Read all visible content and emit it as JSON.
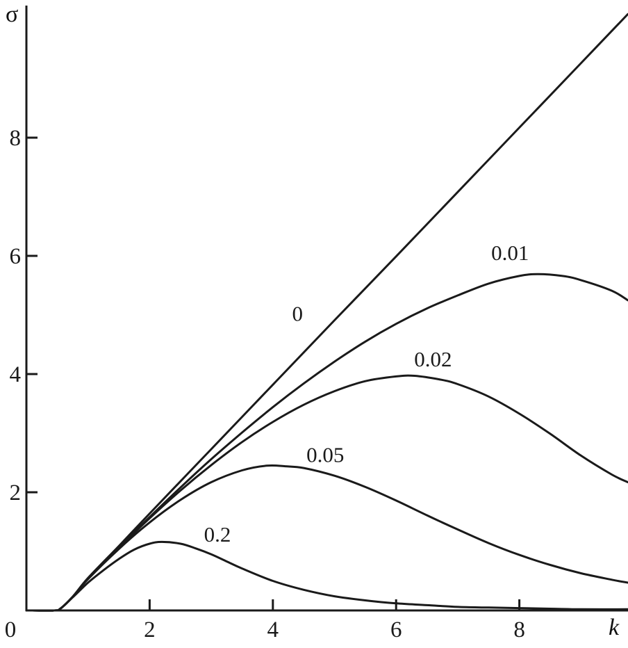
{
  "figure": {
    "background": "#ffffff",
    "line_color": "#1a1a1a"
  },
  "chart_data": {
    "type": "line",
    "title": "",
    "xlabel": "k",
    "ylabel": "σ",
    "xlim": [
      0,
      9.76
    ],
    "ylim": [
      0,
      10.2
    ],
    "x_ticks": [
      2,
      4,
      6,
      8
    ],
    "y_ticks": [
      2,
      4,
      6,
      8
    ],
    "origin_label": "0",
    "grid": false,
    "legend_position": "inline-labels",
    "series": [
      {
        "name": "curve-0",
        "label": "0",
        "label_at": {
          "x": 4.4,
          "y": 5.02
        },
        "points": [
          [
            0,
            0
          ],
          [
            0.45,
            0
          ],
          [
            0.55,
            0.03
          ],
          [
            0.75,
            0.23
          ],
          [
            1,
            0.55
          ],
          [
            1.5,
            1.09
          ],
          [
            2,
            1.64
          ],
          [
            3,
            2.73
          ],
          [
            4,
            3.82
          ],
          [
            5,
            4.91
          ],
          [
            6,
            5.99
          ],
          [
            7,
            7.08
          ],
          [
            8,
            8.17
          ],
          [
            9,
            9.26
          ],
          [
            9.76,
            10.09
          ]
        ]
      },
      {
        "name": "curve-0.01",
        "label": "0.01",
        "label_at": {
          "x": 7.85,
          "y": 6.05
        },
        "points": [
          [
            0,
            0
          ],
          [
            0.45,
            0
          ],
          [
            0.55,
            0.03
          ],
          [
            0.75,
            0.23
          ],
          [
            1,
            0.54
          ],
          [
            1.5,
            1.07
          ],
          [
            2,
            1.58
          ],
          [
            2.5,
            2.08
          ],
          [
            3,
            2.56
          ],
          [
            3.5,
            3.01
          ],
          [
            4,
            3.44
          ],
          [
            4.5,
            3.84
          ],
          [
            5,
            4.21
          ],
          [
            5.5,
            4.55
          ],
          [
            6,
            4.85
          ],
          [
            6.5,
            5.11
          ],
          [
            7,
            5.33
          ],
          [
            7.5,
            5.53
          ],
          [
            8,
            5.66
          ],
          [
            8.3,
            5.69
          ],
          [
            8.7,
            5.66
          ],
          [
            9,
            5.59
          ],
          [
            9.5,
            5.41
          ],
          [
            9.76,
            5.25
          ]
        ]
      },
      {
        "name": "curve-0.02",
        "label": "0.02",
        "label_at": {
          "x": 6.6,
          "y": 4.25
        },
        "points": [
          [
            0,
            0
          ],
          [
            0.45,
            0
          ],
          [
            0.55,
            0.03
          ],
          [
            0.75,
            0.23
          ],
          [
            1,
            0.54
          ],
          [
            1.5,
            1.06
          ],
          [
            2,
            1.56
          ],
          [
            2.5,
            2.03
          ],
          [
            3,
            2.46
          ],
          [
            3.5,
            2.85
          ],
          [
            4,
            3.19
          ],
          [
            4.5,
            3.48
          ],
          [
            5,
            3.71
          ],
          [
            5.5,
            3.88
          ],
          [
            6,
            3.96
          ],
          [
            6.3,
            3.97
          ],
          [
            6.7,
            3.91
          ],
          [
            7,
            3.83
          ],
          [
            7.5,
            3.62
          ],
          [
            8,
            3.33
          ],
          [
            8.5,
            2.99
          ],
          [
            9,
            2.62
          ],
          [
            9.5,
            2.3
          ],
          [
            9.76,
            2.17
          ]
        ]
      },
      {
        "name": "curve-0.05",
        "label": "0.05",
        "label_at": {
          "x": 4.85,
          "y": 2.63
        },
        "points": [
          [
            0,
            0
          ],
          [
            0.45,
            0
          ],
          [
            0.55,
            0.03
          ],
          [
            0.75,
            0.23
          ],
          [
            1,
            0.53
          ],
          [
            1.5,
            1.04
          ],
          [
            2,
            1.49
          ],
          [
            2.5,
            1.87
          ],
          [
            3,
            2.17
          ],
          [
            3.5,
            2.37
          ],
          [
            3.9,
            2.45
          ],
          [
            4.2,
            2.44
          ],
          [
            4.5,
            2.41
          ],
          [
            5,
            2.28
          ],
          [
            5.5,
            2.09
          ],
          [
            6,
            1.86
          ],
          [
            6.5,
            1.61
          ],
          [
            7,
            1.37
          ],
          [
            7.5,
            1.14
          ],
          [
            8,
            0.94
          ],
          [
            8.5,
            0.77
          ],
          [
            9,
            0.63
          ],
          [
            9.5,
            0.52
          ],
          [
            9.76,
            0.47
          ]
        ]
      },
      {
        "name": "curve-0.2",
        "label": "0.2",
        "label_at": {
          "x": 3.1,
          "y": 1.28
        },
        "points": [
          [
            0,
            0
          ],
          [
            0.45,
            0
          ],
          [
            0.55,
            0.03
          ],
          [
            0.75,
            0.22
          ],
          [
            1,
            0.47
          ],
          [
            1.25,
            0.68
          ],
          [
            1.5,
            0.87
          ],
          [
            1.75,
            1.03
          ],
          [
            2,
            1.13
          ],
          [
            2.2,
            1.16
          ],
          [
            2.5,
            1.13
          ],
          [
            2.75,
            1.05
          ],
          [
            3,
            0.95
          ],
          [
            3.25,
            0.83
          ],
          [
            3.5,
            0.71
          ],
          [
            4,
            0.5
          ],
          [
            4.5,
            0.35
          ],
          [
            5,
            0.24
          ],
          [
            5.5,
            0.17
          ],
          [
            6,
            0.12
          ],
          [
            6.5,
            0.09
          ],
          [
            7,
            0.06
          ],
          [
            7.5,
            0.05
          ],
          [
            8,
            0.04
          ],
          [
            8.5,
            0.03
          ],
          [
            9,
            0.02
          ],
          [
            9.76,
            0.02
          ]
        ]
      }
    ]
  }
}
